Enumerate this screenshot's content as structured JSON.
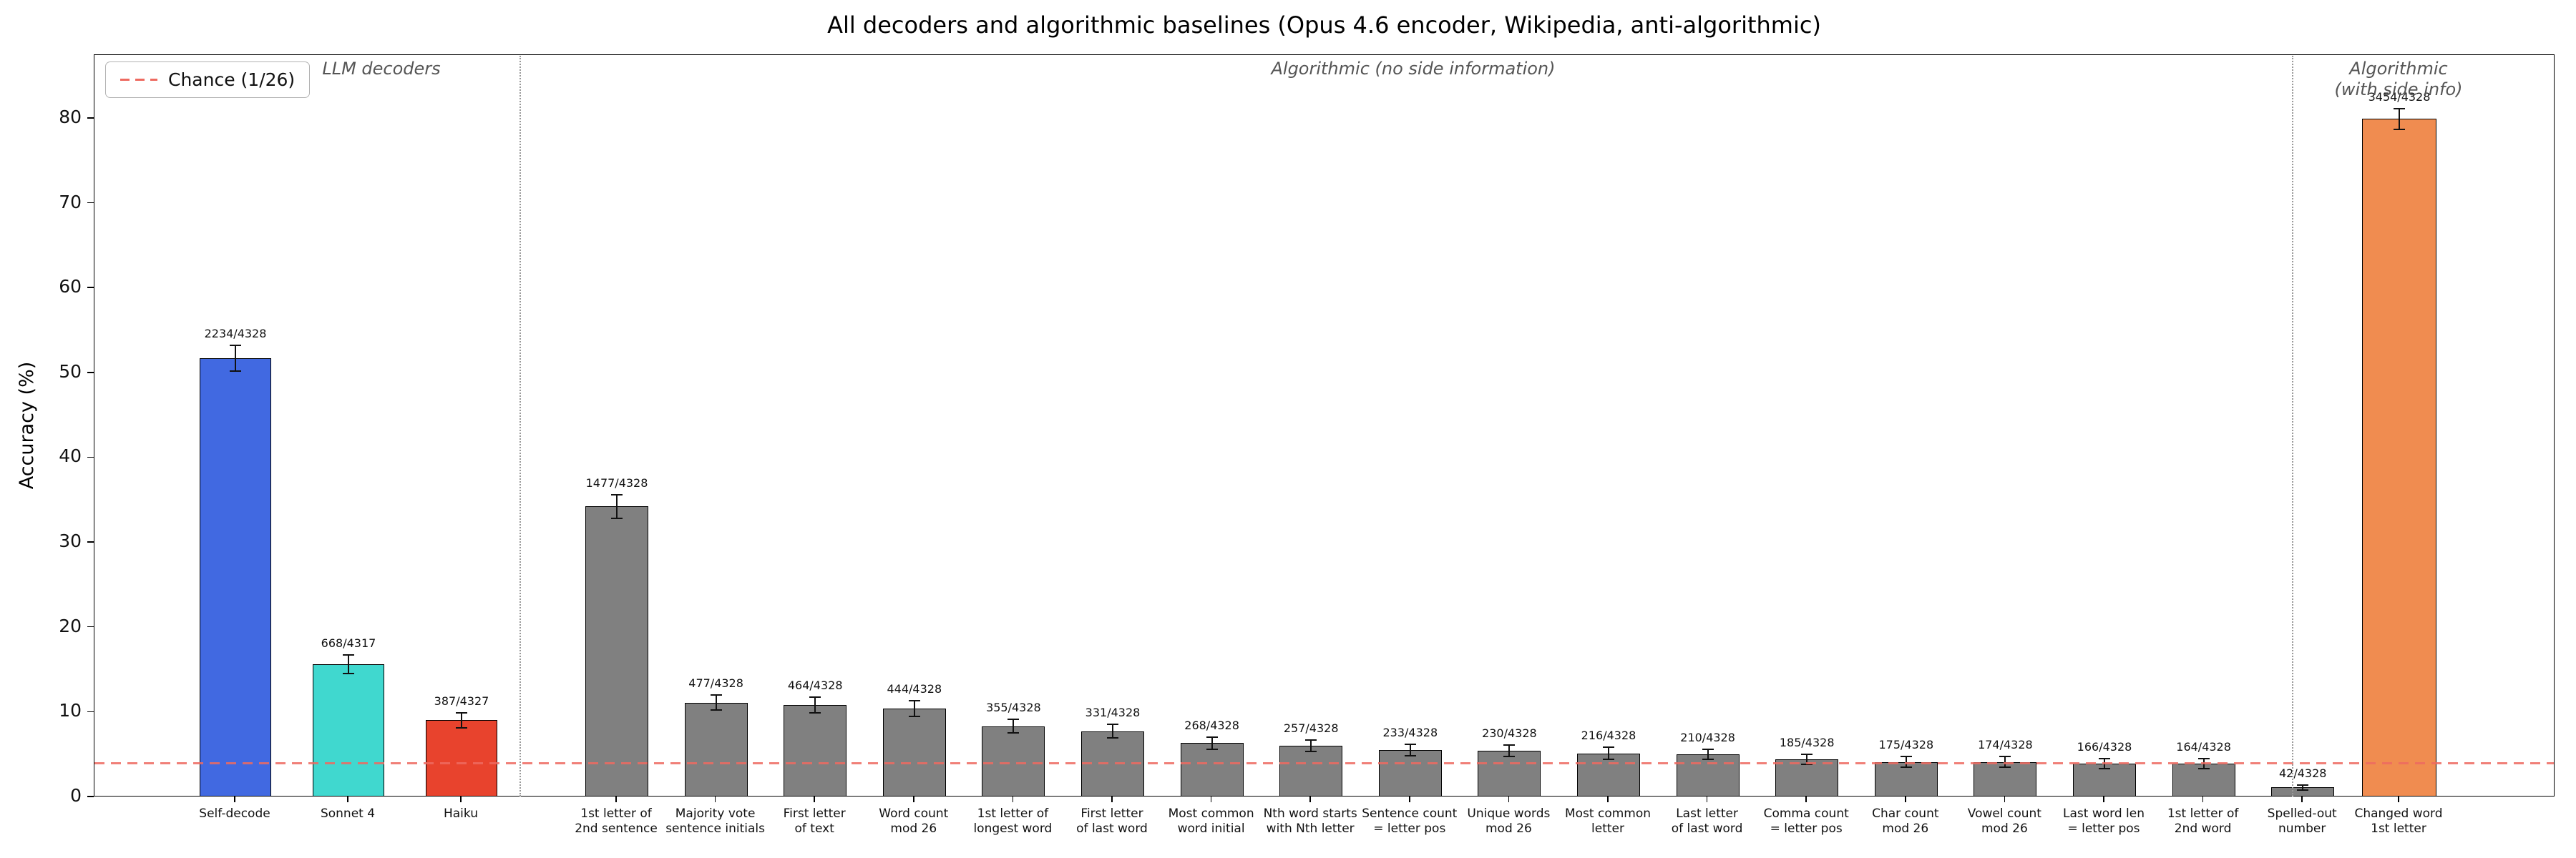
{
  "title": "All decoders and algorithmic baselines (Opus 4.6 encoder, Wikipedia, anti-algorithmic)",
  "legend": {
    "label": "Chance (1/26)"
  },
  "sections": {
    "llm": "LLM decoders",
    "algo": "Algorithmic (no side information)",
    "side_line1": "Algorithmic",
    "side_line2": "(with side info)"
  },
  "chart_data": {
    "type": "bar",
    "title": "All decoders and algorithmic baselines (Opus 4.6 encoder, Wikipedia, anti-algorithmic)",
    "xlabel": "",
    "ylabel": "Accuracy (%)",
    "ylim": [
      0,
      87.5
    ],
    "yticks": [
      0,
      10,
      20,
      30,
      40,
      50,
      60,
      70,
      80
    ],
    "grid": false,
    "legend_position": "upper left",
    "chance_line": {
      "label": "Chance (1/26)",
      "value": 3.85,
      "style": "red dashed"
    },
    "annotations": [
      "LLM decoders",
      "Algorithmic (no side information)",
      "Algorithmic (with side info)"
    ],
    "bars": [
      {
        "label": [
          "Self-decode"
        ],
        "count": "2234/4328",
        "value": 51.6,
        "err": 1.5,
        "group": "llm",
        "color": "#4169e1"
      },
      {
        "label": [
          "Sonnet 4"
        ],
        "count": "668/4317",
        "value": 15.5,
        "err": 1.1,
        "group": "llm",
        "color": "#40d8cf"
      },
      {
        "label": [
          "Haiku"
        ],
        "count": "387/4327",
        "value": 8.9,
        "err": 0.9,
        "group": "llm",
        "color": "#e8432d"
      },
      {
        "label": [
          "1st letter of",
          "2nd sentence"
        ],
        "count": "1477/4328",
        "value": 34.1,
        "err": 1.4,
        "group": "algo",
        "color": "#808080"
      },
      {
        "label": [
          "Majority vote",
          "sentence initials"
        ],
        "count": "477/4328",
        "value": 11.0,
        "err": 0.9,
        "group": "algo",
        "color": "#808080"
      },
      {
        "label": [
          "First letter",
          "of text"
        ],
        "count": "464/4328",
        "value": 10.7,
        "err": 0.9,
        "group": "algo",
        "color": "#808080"
      },
      {
        "label": [
          "Word count",
          "mod 26"
        ],
        "count": "444/4328",
        "value": 10.3,
        "err": 0.9,
        "group": "algo",
        "color": "#808080"
      },
      {
        "label": [
          "1st letter of",
          "longest word"
        ],
        "count": "355/4328",
        "value": 8.2,
        "err": 0.8,
        "group": "algo",
        "color": "#808080"
      },
      {
        "label": [
          "First letter",
          "of last word"
        ],
        "count": "331/4328",
        "value": 7.6,
        "err": 0.8,
        "group": "algo",
        "color": "#808080"
      },
      {
        "label": [
          "Most common",
          "word initial"
        ],
        "count": "268/4328",
        "value": 6.2,
        "err": 0.7,
        "group": "algo",
        "color": "#808080"
      },
      {
        "label": [
          "Nth word starts",
          "with Nth letter"
        ],
        "count": "257/4328",
        "value": 5.9,
        "err": 0.7,
        "group": "algo",
        "color": "#808080"
      },
      {
        "label": [
          "Sentence count",
          "= letter pos"
        ],
        "count": "233/4328",
        "value": 5.4,
        "err": 0.7,
        "group": "algo",
        "color": "#808080"
      },
      {
        "label": [
          "Unique words",
          "mod 26"
        ],
        "count": "230/4328",
        "value": 5.3,
        "err": 0.7,
        "group": "algo",
        "color": "#808080"
      },
      {
        "label": [
          "Most common",
          "letter"
        ],
        "count": "216/4328",
        "value": 5.0,
        "err": 0.7,
        "group": "algo",
        "color": "#808080"
      },
      {
        "label": [
          "Last letter",
          "of last word"
        ],
        "count": "210/4328",
        "value": 4.9,
        "err": 0.6,
        "group": "algo",
        "color": "#808080"
      },
      {
        "label": [
          "Comma count",
          "= letter pos"
        ],
        "count": "185/4328",
        "value": 4.3,
        "err": 0.6,
        "group": "algo",
        "color": "#808080"
      },
      {
        "label": [
          "Char count",
          "mod 26"
        ],
        "count": "175/4328",
        "value": 4.0,
        "err": 0.6,
        "group": "algo",
        "color": "#808080"
      },
      {
        "label": [
          "Vowel count",
          "mod 26"
        ],
        "count": "174/4328",
        "value": 4.0,
        "err": 0.6,
        "group": "algo",
        "color": "#808080"
      },
      {
        "label": [
          "Last word len",
          "= letter pos"
        ],
        "count": "166/4328",
        "value": 3.8,
        "err": 0.6,
        "group": "algo",
        "color": "#808080"
      },
      {
        "label": [
          "1st letter of",
          "2nd word"
        ],
        "count": "164/4328",
        "value": 3.8,
        "err": 0.6,
        "group": "algo",
        "color": "#808080"
      },
      {
        "label": [
          "Spelled-out",
          "number"
        ],
        "count": "42/4328",
        "value": 1.0,
        "err": 0.3,
        "group": "algo",
        "color": "#808080"
      },
      {
        "label": [
          "Changed word",
          "1st letter"
        ],
        "count": "3454/4328",
        "value": 79.8,
        "err": 1.2,
        "group": "side",
        "color": "#f08c50"
      }
    ]
  }
}
